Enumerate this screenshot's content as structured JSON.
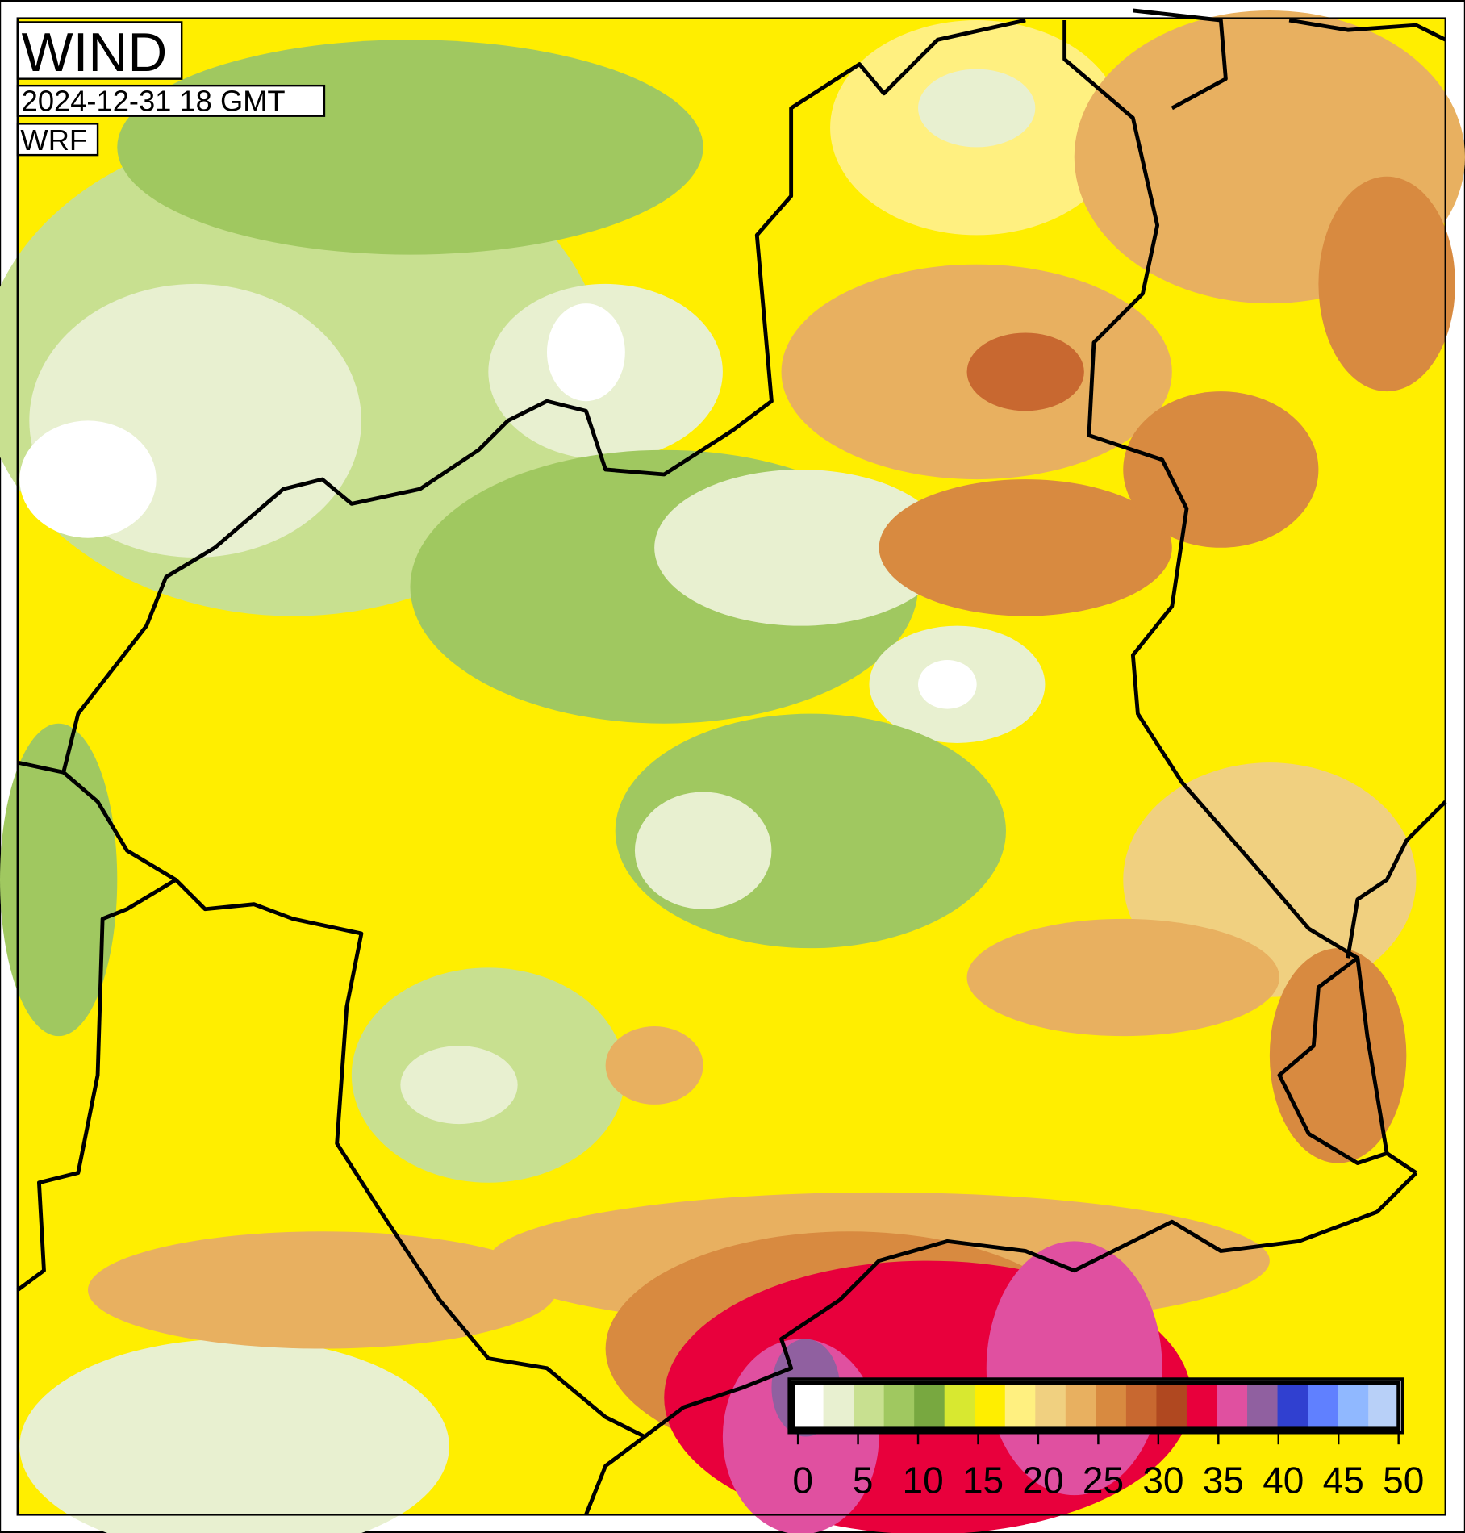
{
  "header": {
    "title": "WIND",
    "date": "2024-12-31 18 GMT",
    "model": "WRF"
  },
  "colorbar": {
    "range": [
      0,
      50
    ],
    "ticks": [
      0,
      5,
      10,
      15,
      20,
      25,
      30,
      35,
      40,
      45,
      50
    ],
    "colors": [
      "#ffffff",
      "#e8f0d0",
      "#c8e090",
      "#a0c860",
      "#78a840",
      "#d8e830",
      "#ffee00",
      "#fff080",
      "#f0d080",
      "#e8b060",
      "#d88a40",
      "#c86830",
      "#b04820",
      "#e8003c",
      "#e050a0",
      "#9060a0",
      "#3040d0",
      "#6080ff",
      "#90b8ff",
      "#b8d0f8"
    ]
  }
}
